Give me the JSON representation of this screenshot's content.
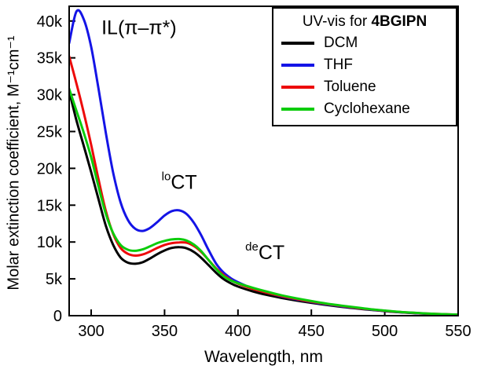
{
  "legend": {
    "title_prefix": "UV-vis for ",
    "title_bold": "4BGIPN",
    "position": "top-right"
  },
  "chart_data": {
    "type": "line",
    "title": "",
    "xlabel": "Wavelength, nm",
    "ylabel": "Molar extinction coefficient, M⁻¹cm⁻¹",
    "xlim": [
      285,
      550
    ],
    "ylim": [
      0,
      42000
    ],
    "grid": false,
    "x_ticks": [
      300,
      350,
      400,
      450,
      500,
      550
    ],
    "x_tick_labels": [
      "300",
      "350",
      "400",
      "450",
      "500",
      "550"
    ],
    "y_ticks": [
      0,
      5000,
      10000,
      15000,
      20000,
      25000,
      30000,
      35000,
      40000
    ],
    "y_tick_labels": [
      "0",
      "5k",
      "10k",
      "15k",
      "20k",
      "25k",
      "30k",
      "35k",
      "40k"
    ],
    "annotations": [
      {
        "sup": "",
        "text": "IL(π–π*)",
        "x": 307,
        "y": 38200
      },
      {
        "sup": "lo",
        "text": "CT",
        "x": 348,
        "y": 17200
      },
      {
        "sup": "de",
        "text": "CT",
        "x": 405,
        "y": 7700
      }
    ],
    "x": [
      285,
      290,
      295,
      300,
      305,
      310,
      315,
      320,
      325,
      330,
      335,
      340,
      345,
      350,
      355,
      360,
      365,
      370,
      375,
      380,
      385,
      390,
      395,
      400,
      410,
      420,
      430,
      440,
      450,
      460,
      470,
      480,
      490,
      500,
      510,
      520,
      535,
      550
    ],
    "series": [
      {
        "name": "DCM",
        "color": "#000000",
        "y": [
          30500,
          26500,
          23000,
          19500,
          15800,
          12200,
          9600,
          7900,
          7200,
          7050,
          7250,
          7750,
          8350,
          8850,
          9200,
          9300,
          9150,
          8650,
          7850,
          6850,
          5850,
          5000,
          4400,
          3950,
          3300,
          2800,
          2400,
          2050,
          1750,
          1470,
          1220,
          1000,
          800,
          620,
          470,
          350,
          210,
          120
        ]
      },
      {
        "name": "THF",
        "color": "#1414e6",
        "y": [
          37000,
          41300,
          40200,
          36500,
          30800,
          24800,
          19400,
          15400,
          13000,
          11800,
          11500,
          11900,
          12700,
          13600,
          14200,
          14300,
          13800,
          12600,
          10900,
          8900,
          7100,
          5900,
          5100,
          4550,
          3700,
          3100,
          2600,
          2200,
          1850,
          1550,
          1280,
          1040,
          830,
          640,
          480,
          360,
          215,
          125
        ]
      },
      {
        "name": "Toluene",
        "color": "#ed0a0a",
        "y": [
          35200,
          31500,
          27500,
          23200,
          18500,
          14200,
          11100,
          9200,
          8400,
          8150,
          8300,
          8700,
          9200,
          9600,
          9850,
          9950,
          9900,
          9450,
          8650,
          7550,
          6450,
          5550,
          4850,
          4350,
          3650,
          3100,
          2650,
          2250,
          1900,
          1600,
          1330,
          1080,
          860,
          670,
          510,
          380,
          230,
          135
        ]
      },
      {
        "name": "Cyclohexane",
        "color": "#0ccc0c",
        "y": [
          30800,
          27800,
          24800,
          21500,
          17500,
          13800,
          11200,
          9600,
          8950,
          8800,
          9000,
          9400,
          9850,
          10150,
          10350,
          10400,
          10200,
          9650,
          8750,
          7550,
          6350,
          5400,
          4800,
          4400,
          3800,
          3250,
          2750,
          2350,
          1980,
          1650,
          1380,
          1130,
          890,
          690,
          520,
          390,
          235,
          140
        ]
      }
    ]
  }
}
